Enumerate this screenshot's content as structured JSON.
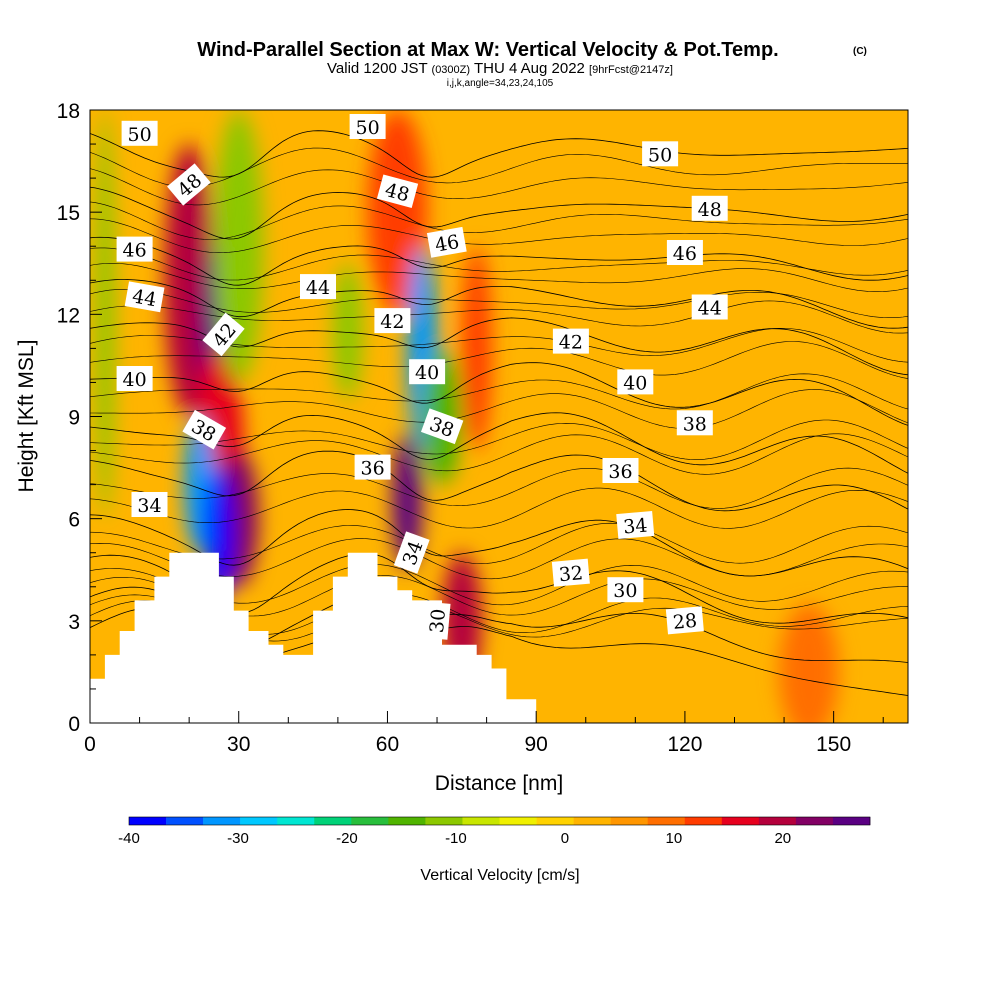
{
  "title": {
    "main": "Wind-Parallel Section at Max W: Vertical Velocity & Pot.Temp.",
    "main_mark": "(C)",
    "valid_a": "Valid 1200 JST",
    "valid_zulu": "(0300Z)",
    "valid_b": "THU 4 Aug 2022",
    "forecast": "[9hrFcst@2147z]",
    "indices": "i,j,k,angle=34,23,24,105"
  },
  "colors": {
    "scale": [
      "#0000ff",
      "#0050ff",
      "#0096ff",
      "#00c8ff",
      "#00e6d2",
      "#00d278",
      "#28be3c",
      "#50b400",
      "#8cc800",
      "#c8e600",
      "#f0f000",
      "#ffd200",
      "#ffb400",
      "#ff9600",
      "#ff6e00",
      "#ff3c00",
      "#e6001e",
      "#b4003c",
      "#820064",
      "#5a0082"
    ],
    "terrain": "#ffffff",
    "contour": "#000000"
  },
  "chart_data": {
    "type": "heatmap",
    "xlabel": "Distance [nm]",
    "ylabel": "Height [Kft MSL]",
    "xlim": [
      0,
      165
    ],
    "ylim": [
      0,
      18
    ],
    "xticks": [
      0,
      30,
      60,
      90,
      120,
      150
    ],
    "yticks": [
      0,
      3,
      6,
      9,
      12,
      15,
      18
    ],
    "colorbar": {
      "label": "Vertical Velocity [cm/s]",
      "min": -40,
      "max": 28,
      "step": 3.4,
      "ticks": [
        -40,
        -30,
        -20,
        -10,
        0,
        10,
        20
      ]
    },
    "terrain_profile": [
      [
        0,
        1.3
      ],
      [
        3,
        1.3
      ],
      [
        3,
        2
      ],
      [
        6,
        2
      ],
      [
        6,
        2.7
      ],
      [
        9,
        2.7
      ],
      [
        9,
        3.6
      ],
      [
        13,
        3.6
      ],
      [
        13,
        4.3
      ],
      [
        16,
        4.3
      ],
      [
        16,
        5
      ],
      [
        26,
        5
      ],
      [
        26,
        4.3
      ],
      [
        29,
        4.3
      ],
      [
        29,
        3.3
      ],
      [
        32,
        3.3
      ],
      [
        32,
        2.7
      ],
      [
        36,
        2.7
      ],
      [
        36,
        2.3
      ],
      [
        39,
        2.3
      ],
      [
        39,
        2
      ],
      [
        45,
        2
      ],
      [
        45,
        3.3
      ],
      [
        49,
        3.3
      ],
      [
        49,
        4.3
      ],
      [
        52,
        4.3
      ],
      [
        52,
        5
      ],
      [
        58,
        5
      ],
      [
        58,
        4.3
      ],
      [
        62,
        4.3
      ],
      [
        62,
        3.9
      ],
      [
        65,
        3.9
      ],
      [
        65,
        3.6
      ],
      [
        71,
        3.6
      ],
      [
        71,
        2.3
      ],
      [
        78,
        2.3
      ],
      [
        78,
        2
      ],
      [
        81,
        2
      ],
      [
        81,
        1.6
      ],
      [
        84,
        1.6
      ],
      [
        84,
        0.7
      ],
      [
        90,
        0.7
      ],
      [
        90,
        0
      ],
      [
        0,
        0
      ]
    ],
    "velocity_features": [
      {
        "x": 3,
        "y": 12,
        "rx": 2,
        "ry": 6,
        "value": -12
      },
      {
        "x": 20,
        "y": 13,
        "rx": 5,
        "ry": 4,
        "value": 18
      },
      {
        "x": 25,
        "y": 11,
        "rx": 3,
        "ry": 3,
        "value": 27
      },
      {
        "x": 26,
        "y": 8,
        "rx": 5,
        "ry": 3,
        "value": 15
      },
      {
        "x": 30,
        "y": 6,
        "rx": 4,
        "ry": 2,
        "value": 22
      },
      {
        "x": 22,
        "y": 7,
        "rx": 3,
        "ry": 2,
        "value": -30
      },
      {
        "x": 26,
        "y": 5.5,
        "rx": 3,
        "ry": 2,
        "value": -38
      },
      {
        "x": 30,
        "y": 14,
        "rx": 5,
        "ry": 4,
        "value": -12
      },
      {
        "x": 52,
        "y": 11.5,
        "rx": 3,
        "ry": 2,
        "value": -12
      },
      {
        "x": 62,
        "y": 15,
        "rx": 6,
        "ry": 3,
        "value": 12
      },
      {
        "x": 67,
        "y": 11,
        "rx": 3,
        "ry": 3,
        "value": -30
      },
      {
        "x": 71,
        "y": 9,
        "rx": 4,
        "ry": 2,
        "value": -15
      },
      {
        "x": 78,
        "y": 11,
        "rx": 3,
        "ry": 3,
        "value": 14
      },
      {
        "x": 64,
        "y": 6.5,
        "rx": 3,
        "ry": 2,
        "value": 27
      },
      {
        "x": 75,
        "y": 3,
        "rx": 4,
        "ry": 2,
        "value": 18
      },
      {
        "x": 145,
        "y": 1.5,
        "rx": 6,
        "ry": 2,
        "value": 10
      }
    ],
    "theta_contours": [
      {
        "label": "28",
        "base": 2.8
      },
      {
        "label": "30",
        "base": 3.4
      },
      {
        "label": "32",
        "base": 4.4
      },
      {
        "label": "34",
        "base": 5.7
      },
      {
        "label": "36",
        "base": 7.5
      },
      {
        "label": "38",
        "base": 8.7
      },
      {
        "label": "40",
        "base": 10.2
      },
      {
        "label": "42",
        "base": 11.6
      },
      {
        "label": "44",
        "base": 12.7
      },
      {
        "label": "46",
        "base": 13.8
      },
      {
        "label": "48",
        "base": 15.2
      },
      {
        "label": "50",
        "base": 16.9
      }
    ],
    "contour_labels": [
      {
        "text": "50",
        "x": 10,
        "y": 17.3,
        "rotate": 0
      },
      {
        "text": "50",
        "x": 56,
        "y": 17.5,
        "rotate": 0
      },
      {
        "text": "50",
        "x": 115,
        "y": 16.7,
        "rotate": 0
      },
      {
        "text": "48",
        "x": 20,
        "y": 15.8,
        "rotate": -40
      },
      {
        "text": "48",
        "x": 62,
        "y": 15.6,
        "rotate": 15
      },
      {
        "text": "48",
        "x": 125,
        "y": 15.1,
        "rotate": 0
      },
      {
        "text": "46",
        "x": 9,
        "y": 13.9,
        "rotate": 0
      },
      {
        "text": "46",
        "x": 72,
        "y": 14.1,
        "rotate": -10
      },
      {
        "text": "46",
        "x": 120,
        "y": 13.8,
        "rotate": 0
      },
      {
        "text": "44",
        "x": 11,
        "y": 12.5,
        "rotate": 10
      },
      {
        "text": "44",
        "x": 46,
        "y": 12.8,
        "rotate": 0
      },
      {
        "text": "44",
        "x": 125,
        "y": 12.2,
        "rotate": 0
      },
      {
        "text": "42",
        "x": 27,
        "y": 11.4,
        "rotate": -50
      },
      {
        "text": "42",
        "x": 61,
        "y": 11.8,
        "rotate": 0
      },
      {
        "text": "42",
        "x": 97,
        "y": 11.2,
        "rotate": 0
      },
      {
        "text": "40",
        "x": 9,
        "y": 10.1,
        "rotate": 0
      },
      {
        "text": "40",
        "x": 68,
        "y": 10.3,
        "rotate": 0
      },
      {
        "text": "40",
        "x": 110,
        "y": 10.0,
        "rotate": 0
      },
      {
        "text": "38",
        "x": 23,
        "y": 8.6,
        "rotate": 30
      },
      {
        "text": "38",
        "x": 71,
        "y": 8.7,
        "rotate": 20
      },
      {
        "text": "38",
        "x": 122,
        "y": 8.8,
        "rotate": 0
      },
      {
        "text": "36",
        "x": 57,
        "y": 7.5,
        "rotate": 0
      },
      {
        "text": "36",
        "x": 107,
        "y": 7.4,
        "rotate": 0
      },
      {
        "text": "34",
        "x": 12,
        "y": 6.4,
        "rotate": 0
      },
      {
        "text": "34",
        "x": 65,
        "y": 5.0,
        "rotate": -70
      },
      {
        "text": "34",
        "x": 110,
        "y": 5.8,
        "rotate": -5
      },
      {
        "text": "32",
        "x": 97,
        "y": 4.4,
        "rotate": -5
      },
      {
        "text": "30",
        "x": 70,
        "y": 3.0,
        "rotate": -85
      },
      {
        "text": "30",
        "x": 108,
        "y": 3.9,
        "rotate": 0
      },
      {
        "text": "28",
        "x": 120,
        "y": 3.0,
        "rotate": -5
      }
    ]
  }
}
